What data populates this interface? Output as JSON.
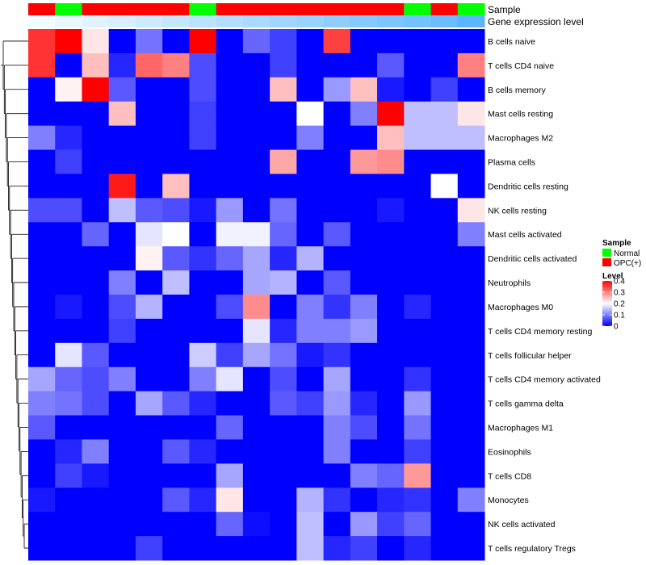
{
  "chart_data": {
    "type": "heatmap",
    "title": "",
    "annotations": {
      "sample_label": "Sample",
      "gene_label": "Gene expression level",
      "sample": [
        "OPC(+)",
        "Normal",
        "OPC(+)",
        "OPC(+)",
        "OPC(+)",
        "OPC(+)",
        "Normal",
        "OPC(+)",
        "OPC(+)",
        "OPC(+)",
        "OPC(+)",
        "OPC(+)",
        "OPC(+)",
        "OPC(+)",
        "Normal",
        "OPC(+)",
        "Normal"
      ],
      "gene_expression": [
        0.0,
        0.06,
        0.12,
        0.18,
        0.24,
        0.3,
        0.36,
        0.42,
        0.48,
        0.54,
        0.6,
        0.66,
        0.72,
        0.78,
        0.84,
        0.9,
        1.0
      ]
    },
    "rows": [
      "B cells naive",
      "T cells CD4 naive",
      "B cells memory",
      "Mast cells resting",
      "Macrophages M2",
      "Plasma cells",
      "Dendritic cells resting",
      "NK cells resting",
      "Mast cells activated",
      "Dendritic cells activated",
      "Neutrophils",
      "Macrophages M0",
      "T cells CD4 memory resting",
      "T cells follicular helper",
      "T cells CD4 memory activated",
      "T cells gamma delta",
      "Macrophages M1",
      "Eosinophils",
      "T cells CD8",
      "Monocytes",
      "NK cells activated",
      "T cells regulatory  Tregs"
    ],
    "values": [
      [
        0.36,
        0.4,
        0.22,
        0,
        0.09,
        0,
        0.4,
        0,
        0.08,
        0.05,
        0,
        0.35,
        0,
        0,
        0,
        0,
        0
      ],
      [
        0.36,
        0,
        0.25,
        0.03,
        0.32,
        0.3,
        0.06,
        0,
        0,
        0.05,
        0,
        0,
        0,
        0.07,
        0,
        0,
        0.3
      ],
      [
        0,
        0.21,
        0.4,
        0.07,
        0,
        0,
        0.06,
        0,
        0,
        0.25,
        0,
        0.12,
        0.25,
        0.02,
        0,
        0.05,
        0
      ],
      [
        0,
        0,
        0,
        0.25,
        0,
        0,
        0.05,
        0,
        0,
        0,
        0.2,
        0,
        0.1,
        0.4,
        0.15,
        0.15,
        0.22
      ],
      [
        0.1,
        0.03,
        0,
        0,
        0,
        0,
        0.05,
        0,
        0,
        0,
        0.1,
        0,
        0,
        0.25,
        0.15,
        0.15,
        0.15
      ],
      [
        0,
        0.05,
        0,
        0,
        0,
        0,
        0,
        0,
        0,
        0.27,
        0,
        0,
        0.28,
        0.29,
        0,
        0,
        0
      ],
      [
        0,
        0,
        0,
        0.38,
        0,
        0.25,
        0,
        0,
        0,
        0,
        0,
        0,
        0,
        0,
        0,
        0.2,
        0
      ],
      [
        0.06,
        0.06,
        0,
        0.15,
        0.07,
        0.06,
        0.02,
        0.12,
        0,
        0.09,
        0,
        0,
        0,
        0.02,
        0,
        0,
        0.22
      ],
      [
        0,
        0,
        0.08,
        0,
        0.18,
        0.2,
        0,
        0.19,
        0.19,
        0.08,
        0,
        0.07,
        0,
        0,
        0,
        0,
        0.1
      ],
      [
        0,
        0,
        0,
        0,
        0.21,
        0.07,
        0.04,
        0.08,
        0.13,
        0.03,
        0.14,
        0,
        0,
        0,
        0,
        0,
        0
      ],
      [
        0,
        0,
        0,
        0.1,
        0,
        0.15,
        0,
        0,
        0.13,
        0.14,
        0,
        0.07,
        0,
        0,
        0,
        0,
        0
      ],
      [
        0,
        0.02,
        0,
        0.06,
        0.14,
        0,
        0,
        0.06,
        0.29,
        0,
        0.1,
        0.04,
        0.1,
        0,
        0.03,
        0,
        0
      ],
      [
        0,
        0,
        0,
        0.05,
        0,
        0,
        0,
        0,
        0.18,
        0.03,
        0.1,
        0.1,
        0.12,
        0,
        0,
        0,
        0
      ],
      [
        0,
        0.18,
        0.07,
        0,
        0,
        0,
        0.16,
        0.05,
        0.13,
        0.09,
        0.02,
        0.04,
        0,
        0,
        0,
        0,
        0
      ],
      [
        0.13,
        0.08,
        0.06,
        0.1,
        0,
        0,
        0.1,
        0.18,
        0,
        0.06,
        0,
        0.13,
        0,
        0,
        0.04,
        0,
        0
      ],
      [
        0.1,
        0.09,
        0.06,
        0,
        0.13,
        0.07,
        0.03,
        0,
        0,
        0.07,
        0.05,
        0.12,
        0.03,
        0,
        0.12,
        0,
        0
      ],
      [
        0.07,
        0,
        0,
        0,
        0,
        0,
        0,
        0.08,
        0,
        0,
        0,
        0.1,
        0.06,
        0,
        0.09,
        0,
        0
      ],
      [
        0,
        0.03,
        0.1,
        0,
        0,
        0.07,
        0.03,
        0,
        0,
        0,
        0,
        0.1,
        0,
        0,
        0.05,
        0,
        0
      ],
      [
        0,
        0.05,
        0.02,
        0,
        0,
        0,
        0,
        0.13,
        0,
        0,
        0,
        0,
        0.1,
        0.08,
        0.28,
        0,
        0
      ],
      [
        0.02,
        0,
        0,
        0,
        0,
        0.07,
        0.03,
        0.22,
        0,
        0,
        0.14,
        0.04,
        0,
        0.03,
        0.04,
        0,
        0.1
      ],
      [
        0,
        0,
        0,
        0,
        0,
        0,
        0,
        0.08,
        0.01,
        0,
        0.15,
        0,
        0.12,
        0.05,
        0.08,
        0,
        0
      ],
      [
        0,
        0,
        0,
        0,
        0.05,
        0,
        0,
        0,
        0,
        0,
        0.15,
        0.03,
        0.05,
        0,
        0.03,
        0,
        0
      ]
    ],
    "legend": {
      "sample_title": "Sample",
      "sample_entries": [
        {
          "label": "Normal",
          "color": "#00ff00"
        },
        {
          "label": "OPC(+)",
          "color": "#ff0000"
        }
      ],
      "level_title": "Level",
      "level_ticks": [
        "0.4",
        "0.3",
        "0.2",
        "0.1",
        "0"
      ],
      "level_tick_values": [
        0.4,
        0.3,
        0.2,
        0.1,
        0
      ]
    },
    "colors": {
      "low": "#0000ff",
      "mid": "#ffffff",
      "high": "#ff0000",
      "normal": "#00ff00",
      "opc": "#ff0000",
      "gene_low": "#f2fbff",
      "gene_high": "#5cb6ff"
    },
    "color_range": [
      0,
      0.4
    ],
    "legend_placement": "right",
    "dendrogram": "left"
  }
}
